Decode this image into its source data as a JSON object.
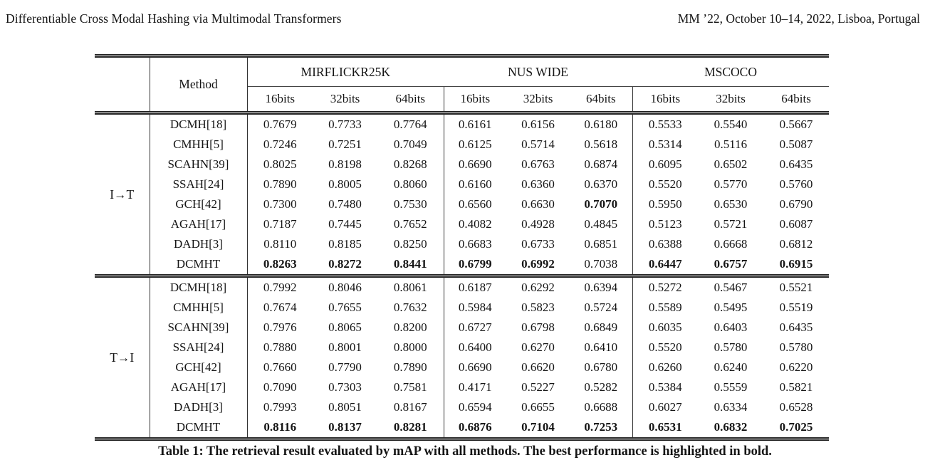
{
  "page_header": {
    "left": "Differentiable Cross Modal Hashing via Multimodal Transformers",
    "right": "MM ’22, October 10–14, 2022, Lisboa, Portugal"
  },
  "table": {
    "method_header": "Method",
    "datasets": [
      "MIRFLICKR25K",
      "NUS WIDE",
      "MSCOCO"
    ],
    "bit_headers": [
      "16bits",
      "32bits",
      "64bits"
    ],
    "groups": [
      {
        "label": "I→T",
        "rows": [
          {
            "method": "DCMH[18]",
            "values": [
              "0.7679",
              "0.7733",
              "0.7764",
              "0.6161",
              "0.6156",
              "0.6180",
              "0.5533",
              "0.5540",
              "0.5667"
            ],
            "bold": [
              false,
              false,
              false,
              false,
              false,
              false,
              false,
              false,
              false
            ]
          },
          {
            "method": "CMHH[5]",
            "values": [
              "0.7246",
              "0.7251",
              "0.7049",
              "0.6125",
              "0.5714",
              "0.5618",
              "0.5314",
              "0.5116",
              "0.5087"
            ],
            "bold": [
              false,
              false,
              false,
              false,
              false,
              false,
              false,
              false,
              false
            ]
          },
          {
            "method": "SCAHN[39]",
            "values": [
              "0.8025",
              "0.8198",
              "0.8268",
              "0.6690",
              "0.6763",
              "0.6874",
              "0.6095",
              "0.6502",
              "0.6435"
            ],
            "bold": [
              false,
              false,
              false,
              false,
              false,
              false,
              false,
              false,
              false
            ]
          },
          {
            "method": "SSAH[24]",
            "values": [
              "0.7890",
              "0.8005",
              "0.8060",
              "0.6160",
              "0.6360",
              "0.6370",
              "0.5520",
              "0.5770",
              "0.5760"
            ],
            "bold": [
              false,
              false,
              false,
              false,
              false,
              false,
              false,
              false,
              false
            ]
          },
          {
            "method": "GCH[42]",
            "values": [
              "0.7300",
              "0.7480",
              "0.7530",
              "0.6560",
              "0.6630",
              "0.7070",
              "0.5950",
              "0.6530",
              "0.6790"
            ],
            "bold": [
              false,
              false,
              false,
              false,
              false,
              true,
              false,
              false,
              false
            ]
          },
          {
            "method": "AGAH[17]",
            "values": [
              "0.7187",
              "0.7445",
              "0.7652",
              "0.4082",
              "0.4928",
              "0.4845",
              "0.5123",
              "0.5721",
              "0.6087"
            ],
            "bold": [
              false,
              false,
              false,
              false,
              false,
              false,
              false,
              false,
              false
            ]
          },
          {
            "method": "DADH[3]",
            "values": [
              "0.8110",
              "0.8185",
              "0.8250",
              "0.6683",
              "0.6733",
              "0.6851",
              "0.6388",
              "0.6668",
              "0.6812"
            ],
            "bold": [
              false,
              false,
              false,
              false,
              false,
              false,
              false,
              false,
              false
            ]
          },
          {
            "method": "DCMHT",
            "values": [
              "0.8263",
              "0.8272",
              "0.8441",
              "0.6799",
              "0.6992",
              "0.7038",
              "0.6447",
              "0.6757",
              "0.6915"
            ],
            "bold": [
              true,
              true,
              true,
              true,
              true,
              false,
              true,
              true,
              true
            ]
          }
        ]
      },
      {
        "label": "T→I",
        "rows": [
          {
            "method": "DCMH[18]",
            "values": [
              "0.7992",
              "0.8046",
              "0.8061",
              "0.6187",
              "0.6292",
              "0.6394",
              "0.5272",
              "0.5467",
              "0.5521"
            ],
            "bold": [
              false,
              false,
              false,
              false,
              false,
              false,
              false,
              false,
              false
            ]
          },
          {
            "method": "CMHH[5]",
            "values": [
              "0.7674",
              "0.7655",
              "0.7632",
              "0.5984",
              "0.5823",
              "0.5724",
              "0.5589",
              "0.5495",
              "0.5519"
            ],
            "bold": [
              false,
              false,
              false,
              false,
              false,
              false,
              false,
              false,
              false
            ]
          },
          {
            "method": "SCAHN[39]",
            "values": [
              "0.7976",
              "0.8065",
              "0.8200",
              "0.6727",
              "0.6798",
              "0.6849",
              "0.6035",
              "0.6403",
              "0.6435"
            ],
            "bold": [
              false,
              false,
              false,
              false,
              false,
              false,
              false,
              false,
              false
            ]
          },
          {
            "method": "SSAH[24]",
            "values": [
              "0.7880",
              "0.8001",
              "0.8000",
              "0.6400",
              "0.6270",
              "0.6410",
              "0.5520",
              "0.5780",
              "0.5780"
            ],
            "bold": [
              false,
              false,
              false,
              false,
              false,
              false,
              false,
              false,
              false
            ]
          },
          {
            "method": "GCH[42]",
            "values": [
              "0.7660",
              "0.7790",
              "0.7890",
              "0.6690",
              "0.6620",
              "0.6780",
              "0.6260",
              "0.6240",
              "0.6220"
            ],
            "bold": [
              false,
              false,
              false,
              false,
              false,
              false,
              false,
              false,
              false
            ]
          },
          {
            "method": "AGAH[17]",
            "values": [
              "0.7090",
              "0.7303",
              "0.7581",
              "0.4171",
              "0.5227",
              "0.5282",
              "0.5384",
              "0.5559",
              "0.5821"
            ],
            "bold": [
              false,
              false,
              false,
              false,
              false,
              false,
              false,
              false,
              false
            ]
          },
          {
            "method": "DADH[3]",
            "values": [
              "0.7993",
              "0.8051",
              "0.8167",
              "0.6594",
              "0.6655",
              "0.6688",
              "0.6027",
              "0.6334",
              "0.6528"
            ],
            "bold": [
              false,
              false,
              false,
              false,
              false,
              false,
              false,
              false,
              false
            ]
          },
          {
            "method": "DCMHT",
            "values": [
              "0.8116",
              "0.8137",
              "0.8281",
              "0.6876",
              "0.7104",
              "0.7253",
              "0.6531",
              "0.6832",
              "0.7025"
            ],
            "bold": [
              true,
              true,
              true,
              true,
              true,
              true,
              true,
              true,
              true
            ]
          }
        ]
      }
    ],
    "caption": "Table 1: The retrieval result evaluated by mAP with all methods. The best performance is highlighted in bold."
  }
}
